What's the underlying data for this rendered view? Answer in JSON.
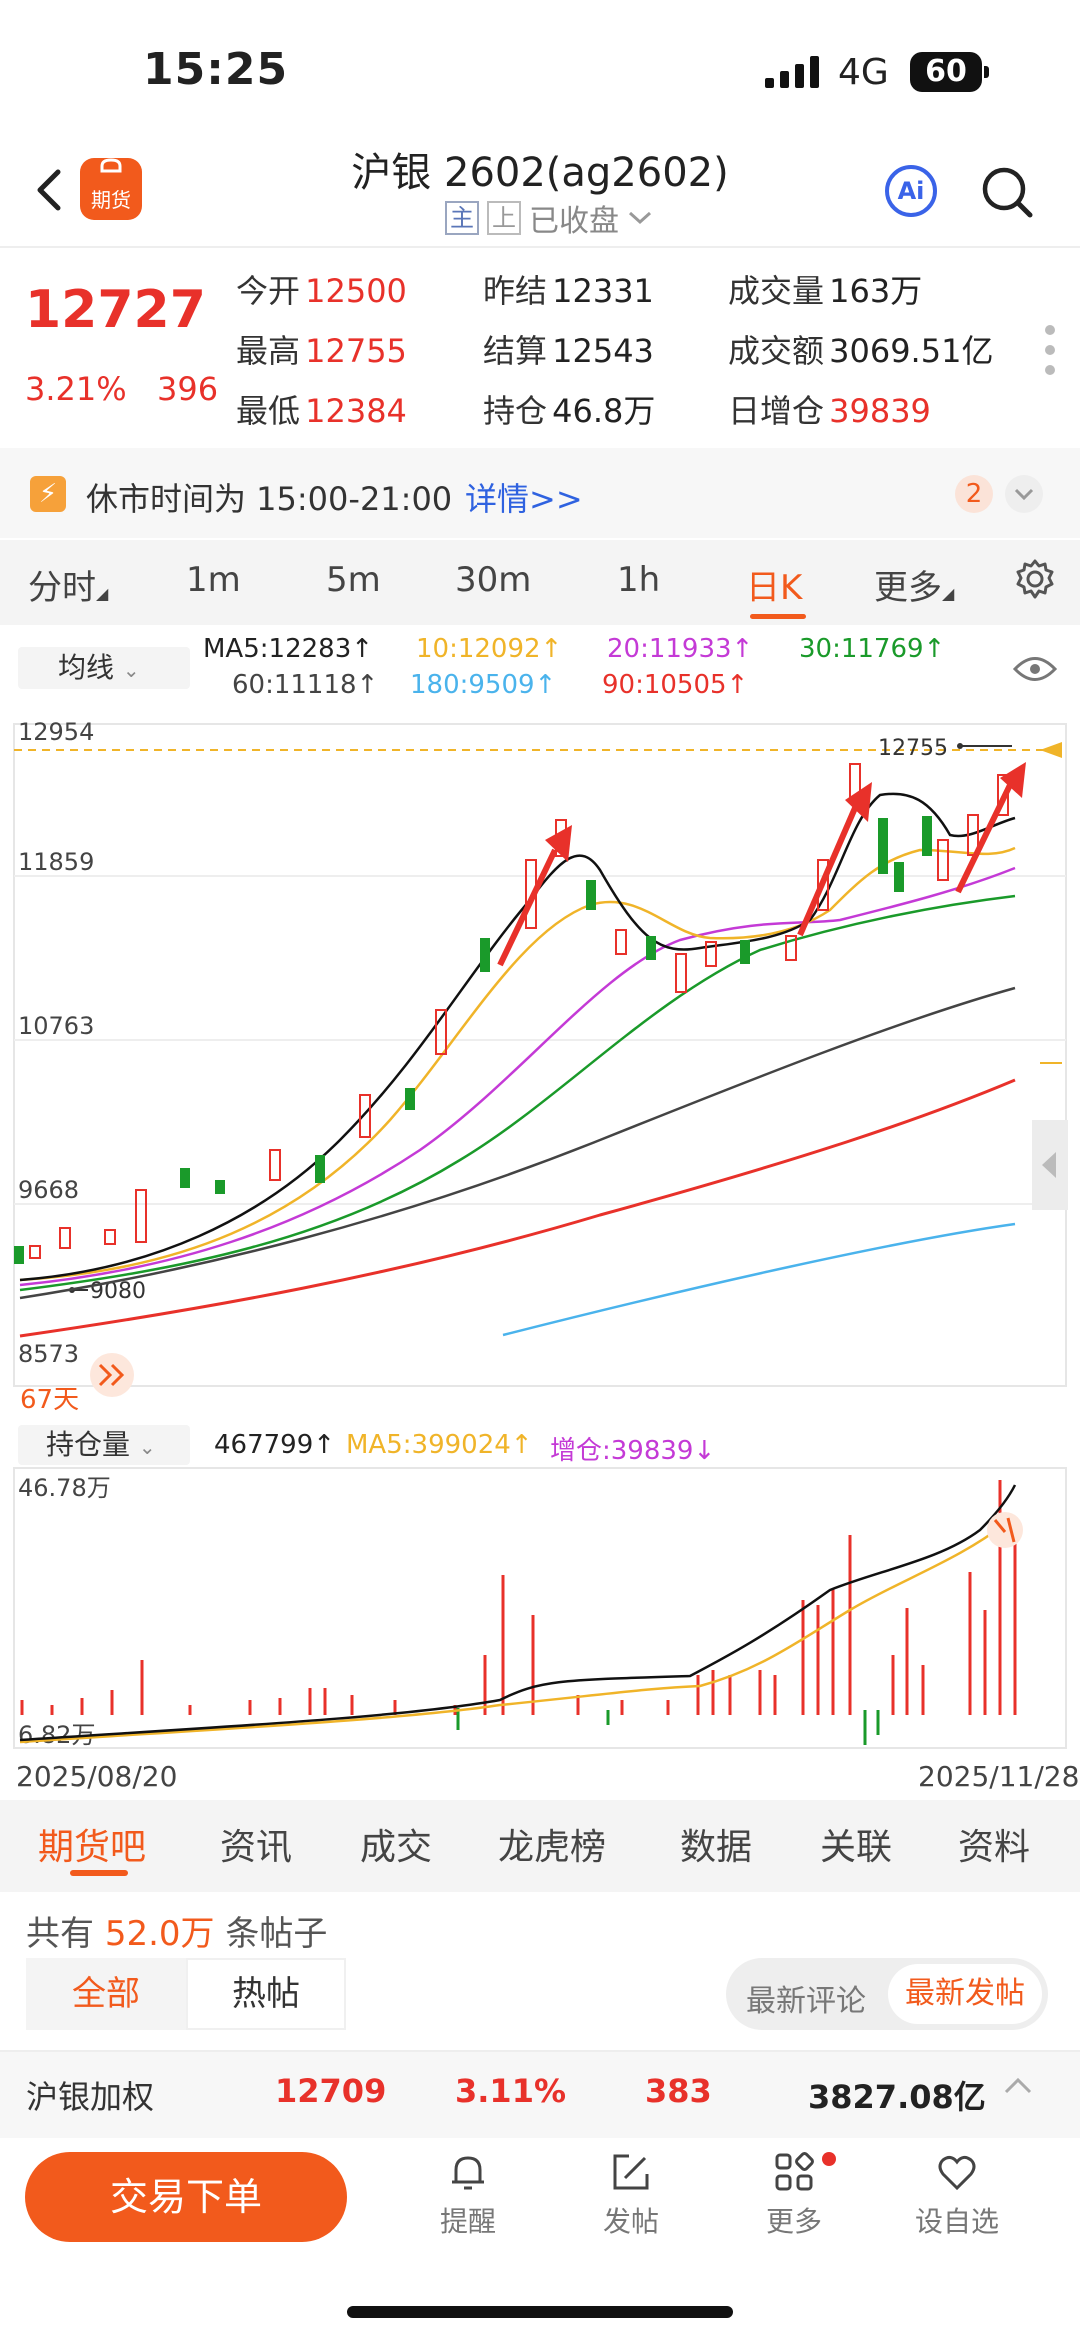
{
  "status_bar": {
    "time": "15:25",
    "network": "4G",
    "battery": "60"
  },
  "header": {
    "title": "沪银 2602(ag2602)",
    "tag_main": "主",
    "tag_up": "上",
    "market_status": "已收盘",
    "app_badge": "期货",
    "ai_label": "Ai"
  },
  "quote": {
    "price": "12727",
    "change_pct": "3.21%",
    "change": "396",
    "fields": [
      {
        "label": "今开",
        "value": "12500",
        "color": "red"
      },
      {
        "label": "昨结",
        "value": "12331",
        "color": "normal"
      },
      {
        "label": "成交量",
        "value": "163万",
        "color": "normal"
      },
      {
        "label": "最高",
        "value": "12755",
        "color": "red"
      },
      {
        "label": "结算",
        "value": "12543",
        "color": "normal"
      },
      {
        "label": "成交额",
        "value": "3069.51亿",
        "color": "normal"
      },
      {
        "label": "最低",
        "value": "12384",
        "color": "red"
      },
      {
        "label": "持仓",
        "value": "46.8万",
        "color": "normal"
      },
      {
        "label": "日增仓",
        "value": "39839",
        "color": "red"
      }
    ]
  },
  "notice": {
    "text": "休市时间为 15:00-21:00",
    "link": "详情>>",
    "badge": "2"
  },
  "period_tabs": [
    "分时",
    "1m",
    "5m",
    "30m",
    "1h",
    "日K",
    "更多"
  ],
  "ma_legend": {
    "type_label": "均线",
    "items": [
      {
        "text": "MA5:12283↑",
        "color": "#222222"
      },
      {
        "text": "10:12092↑",
        "color": "#f0b429"
      },
      {
        "text": "20:11933↑",
        "color": "#c43ad6"
      },
      {
        "text": "30:11769↑",
        "color": "#1a9a2a"
      },
      {
        "text": "60:11118↑",
        "color": "#444444"
      },
      {
        "text": "180:9509↑",
        "color": "#4ab3ec"
      },
      {
        "text": "90:10505↑",
        "color": "#e8312a"
      }
    ]
  },
  "kchart": {
    "y_labels": [
      "12954",
      "11859",
      "10763",
      "9668",
      "8573"
    ],
    "high_label": "12755",
    "low_label": "9080",
    "days_label": "67天"
  },
  "volume_legend": {
    "type_label": "持仓量",
    "value": "467799↑",
    "ma5": "MA5:399024↑",
    "increase": "增仓:39839↓",
    "y_top": "46.78万",
    "y_bottom": "6.82万"
  },
  "dates": {
    "start": "2025/08/20",
    "end": "2025/11/28"
  },
  "bottom_tabs": [
    "期货吧",
    "资讯",
    "成交",
    "龙虎榜",
    "数据",
    "关联",
    "资料"
  ],
  "posts": {
    "count_prefix": "共有",
    "count_value": "52.0万",
    "count_suffix": "条帖子",
    "filter_all": "全部",
    "filter_hot": "热帖",
    "sort_comment": "最新评论",
    "sort_post": "最新发帖"
  },
  "index_bar": {
    "name": "沪银加权",
    "price": "12709",
    "pct": "3.11%",
    "change": "383",
    "amount": "3827.08亿"
  },
  "actions": {
    "trade": "交易下单",
    "items": [
      "提醒",
      "发帖",
      "更多",
      "设自选"
    ]
  },
  "colors": {
    "accent": "#f25a1c",
    "up": "#e8312a",
    "down": "#1a9a2a",
    "link": "#2f62e0"
  }
}
